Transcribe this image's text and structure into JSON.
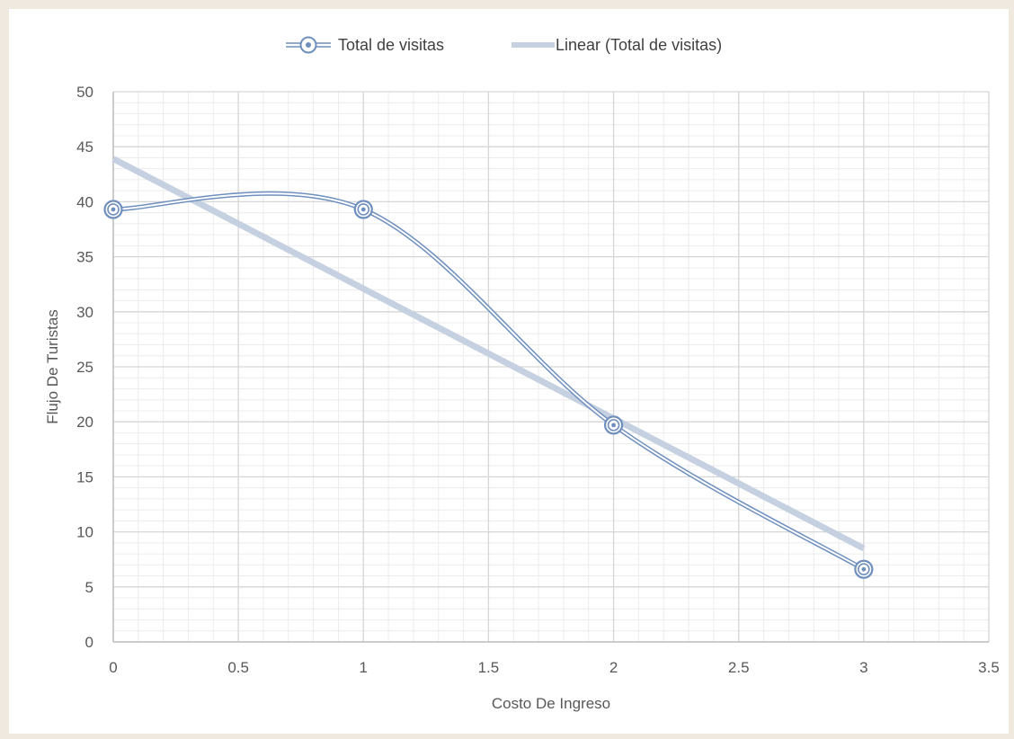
{
  "chart_data": {
    "type": "line",
    "title": "",
    "xlabel": "Costo De Ingreso",
    "ylabel": "Flujo De Turistas",
    "xlim": [
      0,
      3.5
    ],
    "ylim": [
      0,
      50
    ],
    "x_ticks": [
      0,
      0.5,
      1,
      1.5,
      2,
      2.5,
      3,
      3.5
    ],
    "x_tick_labels": [
      "0",
      "0.5",
      "1",
      "1.5",
      "2",
      "2.5",
      "3",
      "3.5"
    ],
    "y_ticks": [
      0,
      5,
      10,
      15,
      20,
      25,
      30,
      35,
      40,
      45,
      50
    ],
    "y_tick_labels": [
      "0",
      "5",
      "10",
      "15",
      "20",
      "25",
      "30",
      "35",
      "40",
      "45",
      "50"
    ],
    "grid": true,
    "legend_position": "top",
    "series": [
      {
        "name": "Total de visitas",
        "style": "smooth-double-line-with-circle-markers",
        "color": "#6f8fbf",
        "x": [
          0,
          1,
          2,
          3
        ],
        "y": [
          39.3,
          39.3,
          19.7,
          6.6
        ]
      },
      {
        "name": "Linear (Total de visitas)",
        "style": "trendline",
        "color": "#c5d0e1",
        "x": [
          0,
          3
        ],
        "y": [
          43.9,
          8.5
        ]
      }
    ]
  }
}
